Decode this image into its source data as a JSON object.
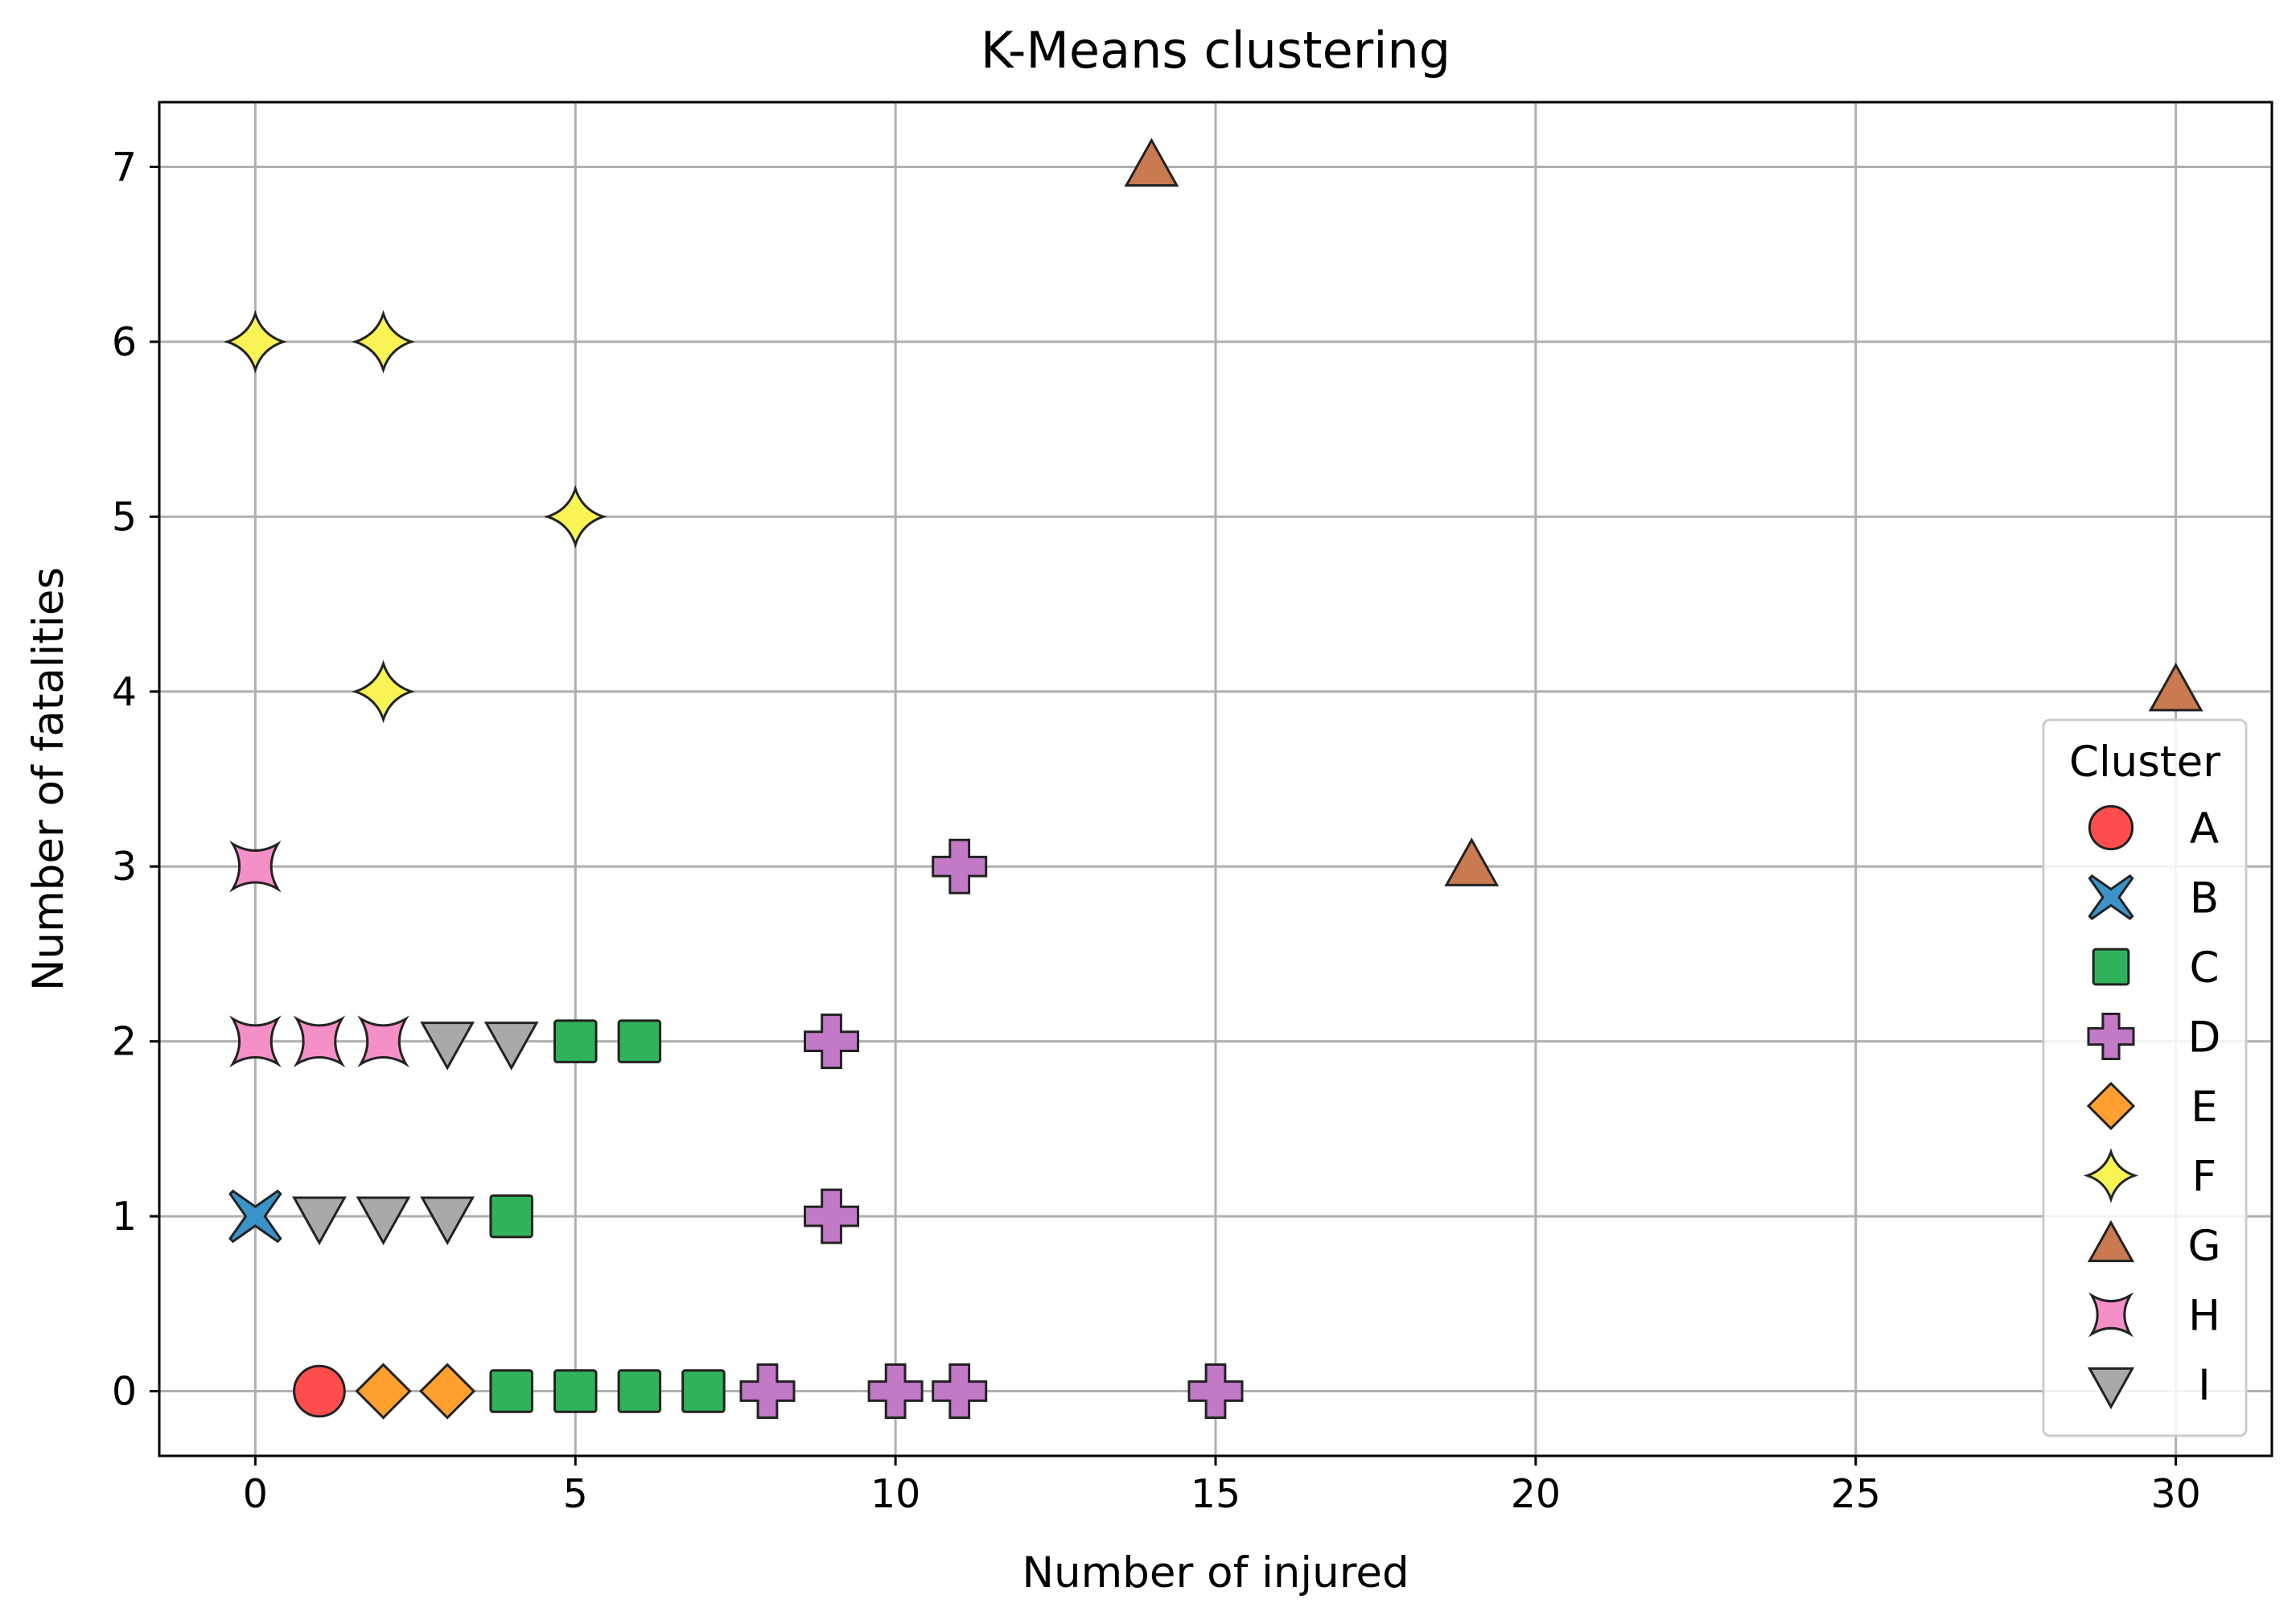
{
  "chart_data": {
    "type": "scatter",
    "title": "K-Means clustering",
    "xlabel": "Number of injured",
    "ylabel": "Number of fatalities",
    "xlim": [
      -1.5,
      31.5
    ],
    "ylim": [
      -0.37,
      7.37
    ],
    "xticks": [
      0,
      5,
      10,
      15,
      20,
      25,
      30
    ],
    "yticks": [
      0,
      1,
      2,
      3,
      4,
      5,
      6,
      7
    ],
    "grid": true,
    "legend": {
      "title": "Cluster",
      "placement": "lower-right"
    },
    "series": [
      {
        "name": "A",
        "marker": "circle",
        "color": "#ff4d4d",
        "points": [
          [
            1,
            0
          ]
        ]
      },
      {
        "name": "B",
        "marker": "x",
        "color": "#3a93c9",
        "points": [
          [
            0,
            1
          ]
        ]
      },
      {
        "name": "C",
        "marker": "square",
        "color": "#2fb35a",
        "points": [
          [
            4,
            0
          ],
          [
            5,
            0
          ],
          [
            6,
            0
          ],
          [
            7,
            0
          ],
          [
            4,
            1
          ],
          [
            5,
            2
          ],
          [
            6,
            2
          ]
        ]
      },
      {
        "name": "D",
        "marker": "plus",
        "color": "#c27ac6",
        "points": [
          [
            8,
            0
          ],
          [
            10,
            0
          ],
          [
            11,
            0
          ],
          [
            15,
            0
          ],
          [
            9,
            1
          ],
          [
            9,
            2
          ],
          [
            11,
            3
          ]
        ]
      },
      {
        "name": "E",
        "marker": "diamond",
        "color": "#ff9f30",
        "points": [
          [
            2,
            0
          ],
          [
            3,
            0
          ]
        ]
      },
      {
        "name": "F",
        "marker": "star4",
        "color": "#f8f455",
        "points": [
          [
            2,
            4
          ],
          [
            5,
            5
          ],
          [
            0,
            6
          ],
          [
            2,
            6
          ]
        ]
      },
      {
        "name": "G",
        "marker": "triangle-up",
        "color": "#c97a50",
        "points": [
          [
            14,
            7
          ],
          [
            19,
            3
          ],
          [
            30,
            4
          ]
        ]
      },
      {
        "name": "H",
        "marker": "concave-square",
        "color": "#f58fc7",
        "points": [
          [
            0,
            2
          ],
          [
            1,
            2
          ],
          [
            2,
            2
          ],
          [
            0,
            3
          ]
        ]
      },
      {
        "name": "I",
        "marker": "triangle-down",
        "color": "#a9a9a9",
        "points": [
          [
            1,
            1
          ],
          [
            2,
            1
          ],
          [
            3,
            1
          ],
          [
            3,
            2
          ],
          [
            4,
            2
          ]
        ]
      }
    ]
  }
}
